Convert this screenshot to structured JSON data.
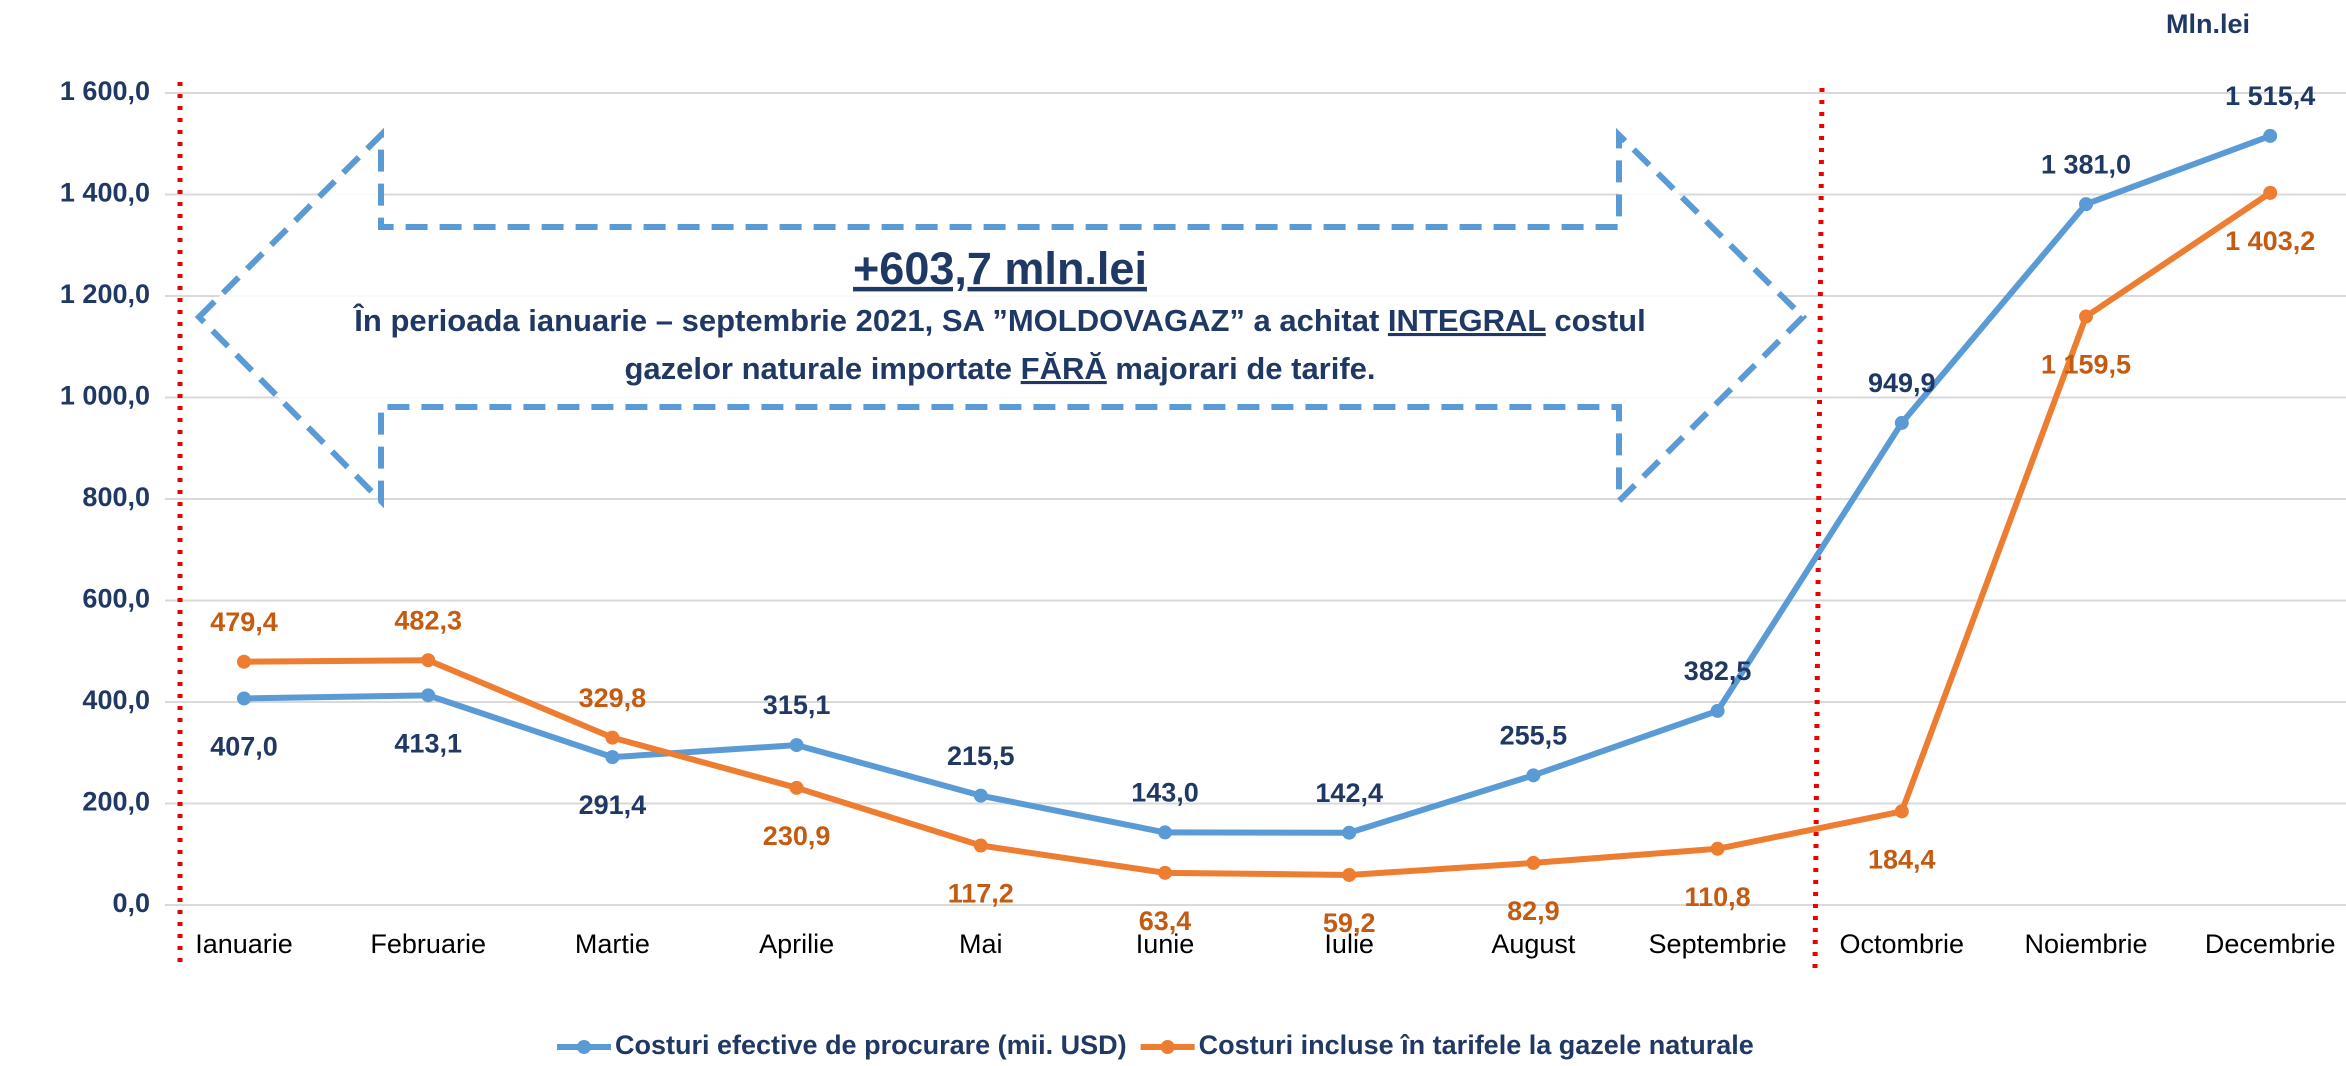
{
  "chart_data": {
    "type": "line",
    "unit": "Mln.lei",
    "categories": [
      "Ianuarie",
      "Februarie",
      "Martie",
      "Aprilie",
      "Mai",
      "Iunie",
      "Iulie",
      "August",
      "Septembrie",
      "Octombrie",
      "Noiembrie",
      "Decembrie"
    ],
    "series": [
      {
        "name": "Costuri efective de procurare (mii. USD)",
        "color": "#5b9bd5",
        "values": [
          407.0,
          413.1,
          291.4,
          315.1,
          215.5,
          143.0,
          142.4,
          255.5,
          382.5,
          949.9,
          1381.0,
          1515.4
        ],
        "value_labels": [
          "407,0",
          "413,1",
          "291,4",
          "315,1",
          "215,5",
          "143,0",
          "142,4",
          "255,5",
          "382,5",
          "949,9",
          "1 381,0",
          "1 515,4"
        ]
      },
      {
        "name": "Costuri incluse în tarifele la gazele naturale",
        "color": "#ed7d31",
        "values": [
          479.4,
          482.3,
          329.8,
          230.9,
          117.2,
          63.4,
          59.2,
          82.9,
          110.8,
          184.4,
          1159.5,
          1403.2
        ],
        "value_labels": [
          "479,4",
          "482,3",
          "329,8",
          "230,9",
          "117,2",
          "63,4",
          "59,2",
          "82,9",
          "110,8",
          "184,4",
          "1 159,5",
          "1 403,2"
        ]
      }
    ],
    "ylim": [
      0,
      1600
    ],
    "yticks": [
      {
        "value": 0,
        "label": "0,0"
      },
      {
        "value": 200,
        "label": "200,0"
      },
      {
        "value": 400,
        "label": "400,0"
      },
      {
        "value": 600,
        "label": "600,0"
      },
      {
        "value": 800,
        "label": "800,0"
      },
      {
        "value": 1000,
        "label": "1 000,0"
      },
      {
        "value": 1200,
        "label": "1 200,0"
      },
      {
        "value": 1400,
        "label": "1 400,0"
      },
      {
        "value": 1600,
        "label": "1 600,0"
      }
    ],
    "grid": true,
    "legend": "bottom",
    "annotation": {
      "headline": "+603,7 mln.lei",
      "lines": [
        [
          "În perioada ianuarie – septembrie 2021, SA ”MOLDOVAGAZ” a achitat ",
          "INTEGRAL",
          " costul"
        ],
        [
          "gazelor naturale importate ",
          "FĂRĂ",
          " majorari de tarife."
        ]
      ]
    }
  }
}
